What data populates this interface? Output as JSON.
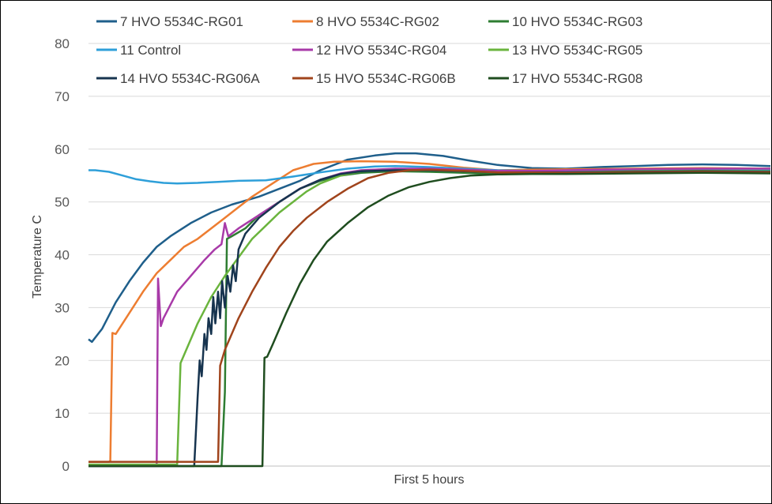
{
  "chart_data": {
    "type": "line",
    "title": "",
    "xlabel": "First 5 hours",
    "ylabel": "Temperature C",
    "ylim": [
      0,
      80
    ],
    "yticks": [
      "0",
      "10",
      "20",
      "30",
      "40",
      "50",
      "60",
      "70",
      "80"
    ],
    "x_unit": "fraction of 5-hour window",
    "grid": "horizontal",
    "legend_position": "top",
    "series": [
      {
        "name": "7 HVO 5534C-RG01",
        "color": "#1f5f8b",
        "points": [
          [
            0,
            24
          ],
          [
            0.005,
            23.5
          ],
          [
            0.02,
            26
          ],
          [
            0.04,
            31
          ],
          [
            0.06,
            35
          ],
          [
            0.08,
            38.5
          ],
          [
            0.1,
            41.5
          ],
          [
            0.12,
            43.5
          ],
          [
            0.15,
            46
          ],
          [
            0.18,
            48
          ],
          [
            0.21,
            49.5
          ],
          [
            0.25,
            51
          ],
          [
            0.28,
            52.5
          ],
          [
            0.31,
            54
          ],
          [
            0.34,
            56
          ],
          [
            0.38,
            58
          ],
          [
            0.42,
            58.8
          ],
          [
            0.45,
            59.2
          ],
          [
            0.48,
            59.2
          ],
          [
            0.52,
            58.7
          ],
          [
            0.56,
            57.8
          ],
          [
            0.6,
            57
          ],
          [
            0.65,
            56.4
          ],
          [
            0.7,
            56.3
          ],
          [
            0.75,
            56.6
          ],
          [
            0.8,
            56.8
          ],
          [
            0.85,
            57
          ],
          [
            0.9,
            57.1
          ],
          [
            0.95,
            57
          ],
          [
            1,
            56.8
          ]
        ]
      },
      {
        "name": "8 HVO 5534C-RG02",
        "color": "#ed7d31",
        "points": [
          [
            0,
            0.8
          ],
          [
            0.03,
            0.8
          ],
          [
            0.032,
            1
          ],
          [
            0.035,
            25.2
          ],
          [
            0.04,
            25
          ],
          [
            0.06,
            29
          ],
          [
            0.08,
            33
          ],
          [
            0.1,
            36.5
          ],
          [
            0.12,
            39
          ],
          [
            0.14,
            41.5
          ],
          [
            0.16,
            43
          ],
          [
            0.18,
            45
          ],
          [
            0.2,
            47
          ],
          [
            0.22,
            49
          ],
          [
            0.24,
            51
          ],
          [
            0.27,
            53.5
          ],
          [
            0.3,
            56
          ],
          [
            0.33,
            57.2
          ],
          [
            0.36,
            57.6
          ],
          [
            0.4,
            57.7
          ],
          [
            0.45,
            57.6
          ],
          [
            0.5,
            57.2
          ],
          [
            0.55,
            56.5
          ],
          [
            0.6,
            56
          ],
          [
            0.65,
            56.1
          ],
          [
            0.7,
            56.2
          ],
          [
            0.8,
            56.3
          ],
          [
            0.9,
            56.4
          ],
          [
            1,
            56.3
          ]
        ]
      },
      {
        "name": "10 HVO 5534C-RG03",
        "color": "#2e7d32",
        "points": [
          [
            0,
            0
          ],
          [
            0.195,
            0
          ],
          [
            0.2,
            14
          ],
          [
            0.203,
            43
          ],
          [
            0.21,
            43.5
          ],
          [
            0.23,
            45
          ],
          [
            0.25,
            47.5
          ],
          [
            0.28,
            50
          ],
          [
            0.31,
            52.5
          ],
          [
            0.34,
            54
          ],
          [
            0.37,
            55
          ],
          [
            0.4,
            55.5
          ],
          [
            0.45,
            55.8
          ],
          [
            0.5,
            55.7
          ],
          [
            0.55,
            55.5
          ],
          [
            0.6,
            55.3
          ],
          [
            0.65,
            55.4
          ],
          [
            0.7,
            55.4
          ],
          [
            0.8,
            55.5
          ],
          [
            0.9,
            55.6
          ],
          [
            1,
            55.5
          ]
        ]
      },
      {
        "name": "11 Control",
        "color": "#2e9fd9",
        "points": [
          [
            0,
            56
          ],
          [
            0.01,
            56
          ],
          [
            0.03,
            55.7
          ],
          [
            0.05,
            55
          ],
          [
            0.07,
            54.3
          ],
          [
            0.09,
            53.9
          ],
          [
            0.11,
            53.6
          ],
          [
            0.13,
            53.5
          ],
          [
            0.16,
            53.6
          ],
          [
            0.19,
            53.8
          ],
          [
            0.22,
            54
          ],
          [
            0.26,
            54.1
          ],
          [
            0.3,
            54.8
          ],
          [
            0.34,
            55.6
          ],
          [
            0.38,
            56.3
          ],
          [
            0.42,
            56.7
          ],
          [
            0.45,
            56.8
          ],
          [
            0.5,
            56.6
          ],
          [
            0.55,
            56.3
          ],
          [
            0.6,
            56
          ],
          [
            0.65,
            55.9
          ],
          [
            0.7,
            55.9
          ],
          [
            0.8,
            56.1
          ],
          [
            0.9,
            56.1
          ],
          [
            1,
            56
          ]
        ]
      },
      {
        "name": "12 HVO 5534C-RG04",
        "color": "#a83aa8",
        "points": [
          [
            0,
            0
          ],
          [
            0.1,
            0
          ],
          [
            0.102,
            35.5
          ],
          [
            0.106,
            26.5
          ],
          [
            0.11,
            28
          ],
          [
            0.13,
            33
          ],
          [
            0.15,
            36
          ],
          [
            0.17,
            39
          ],
          [
            0.185,
            41
          ],
          [
            0.195,
            42
          ],
          [
            0.2,
            46
          ],
          [
            0.205,
            43.5
          ],
          [
            0.22,
            45
          ],
          [
            0.25,
            47.5
          ],
          [
            0.28,
            50
          ],
          [
            0.31,
            52.5
          ],
          [
            0.34,
            54.2
          ],
          [
            0.37,
            55.4
          ],
          [
            0.4,
            56
          ],
          [
            0.45,
            56.3
          ],
          [
            0.5,
            56.3
          ],
          [
            0.55,
            56.1
          ],
          [
            0.6,
            55.9
          ],
          [
            0.65,
            55.9
          ],
          [
            0.7,
            56
          ],
          [
            0.8,
            56.2
          ],
          [
            0.9,
            56.3
          ],
          [
            1,
            56.3
          ]
        ]
      },
      {
        "name": "13 HVO 5534C-RG05",
        "color": "#6ab43d",
        "points": [
          [
            0,
            0.3
          ],
          [
            0.13,
            0.3
          ],
          [
            0.135,
            19.5
          ],
          [
            0.14,
            21
          ],
          [
            0.16,
            27
          ],
          [
            0.18,
            32
          ],
          [
            0.2,
            36
          ],
          [
            0.22,
            39.5
          ],
          [
            0.24,
            43
          ],
          [
            0.26,
            45.5
          ],
          [
            0.28,
            48
          ],
          [
            0.3,
            50
          ],
          [
            0.32,
            52
          ],
          [
            0.34,
            53.5
          ],
          [
            0.37,
            55
          ],
          [
            0.4,
            55.8
          ],
          [
            0.45,
            56
          ],
          [
            0.5,
            56
          ],
          [
            0.55,
            55.8
          ],
          [
            0.6,
            55.6
          ],
          [
            0.65,
            55.5
          ],
          [
            0.7,
            55.6
          ],
          [
            0.8,
            55.8
          ],
          [
            0.9,
            55.9
          ],
          [
            1,
            55.8
          ]
        ]
      },
      {
        "name": "14 HVO 5534C-RG06A",
        "color": "#17344f",
        "points": [
          [
            0,
            0
          ],
          [
            0.155,
            0
          ],
          [
            0.16,
            13
          ],
          [
            0.163,
            20
          ],
          [
            0.166,
            17
          ],
          [
            0.17,
            25
          ],
          [
            0.173,
            22
          ],
          [
            0.176,
            28
          ],
          [
            0.18,
            25
          ],
          [
            0.183,
            32
          ],
          [
            0.186,
            27
          ],
          [
            0.19,
            33
          ],
          [
            0.193,
            28
          ],
          [
            0.196,
            35
          ],
          [
            0.2,
            30
          ],
          [
            0.204,
            36
          ],
          [
            0.208,
            33
          ],
          [
            0.212,
            38
          ],
          [
            0.216,
            35
          ],
          [
            0.22,
            41
          ],
          [
            0.23,
            44
          ],
          [
            0.25,
            47
          ],
          [
            0.28,
            50
          ],
          [
            0.31,
            52.5
          ],
          [
            0.34,
            54.2
          ],
          [
            0.37,
            55.3
          ],
          [
            0.4,
            55.8
          ],
          [
            0.45,
            56
          ],
          [
            0.5,
            56
          ],
          [
            0.55,
            55.8
          ],
          [
            0.6,
            55.6
          ],
          [
            0.7,
            55.6
          ],
          [
            0.8,
            55.7
          ],
          [
            0.9,
            55.8
          ],
          [
            1,
            55.7
          ]
        ]
      },
      {
        "name": "15 HVO 5534C-RG06B",
        "color": "#a0441c",
        "points": [
          [
            0,
            0.8
          ],
          [
            0.19,
            0.8
          ],
          [
            0.193,
            19
          ],
          [
            0.2,
            22
          ],
          [
            0.22,
            28
          ],
          [
            0.24,
            33
          ],
          [
            0.26,
            37.5
          ],
          [
            0.28,
            41.5
          ],
          [
            0.3,
            44.5
          ],
          [
            0.32,
            47
          ],
          [
            0.35,
            50
          ],
          [
            0.38,
            52.5
          ],
          [
            0.41,
            54.5
          ],
          [
            0.44,
            55.5
          ],
          [
            0.47,
            56
          ],
          [
            0.5,
            56.1
          ],
          [
            0.55,
            55.9
          ],
          [
            0.6,
            55.6
          ],
          [
            0.7,
            55.5
          ],
          [
            0.8,
            55.6
          ],
          [
            0.9,
            55.7
          ],
          [
            1,
            55.6
          ]
        ]
      },
      {
        "name": "17 HVO 5534C-RG08",
        "color": "#1f4d1f",
        "points": [
          [
            0,
            0
          ],
          [
            0.255,
            0
          ],
          [
            0.258,
            20.5
          ],
          [
            0.262,
            20.7
          ],
          [
            0.27,
            23
          ],
          [
            0.29,
            29
          ],
          [
            0.31,
            34.5
          ],
          [
            0.33,
            39
          ],
          [
            0.35,
            42.5
          ],
          [
            0.38,
            46
          ],
          [
            0.41,
            49
          ],
          [
            0.44,
            51.2
          ],
          [
            0.47,
            52.8
          ],
          [
            0.5,
            53.8
          ],
          [
            0.53,
            54.5
          ],
          [
            0.56,
            55
          ],
          [
            0.6,
            55.2
          ],
          [
            0.65,
            55.3
          ],
          [
            0.7,
            55.3
          ],
          [
            0.8,
            55.4
          ],
          [
            0.9,
            55.5
          ],
          [
            1,
            55.4
          ]
        ]
      }
    ]
  }
}
